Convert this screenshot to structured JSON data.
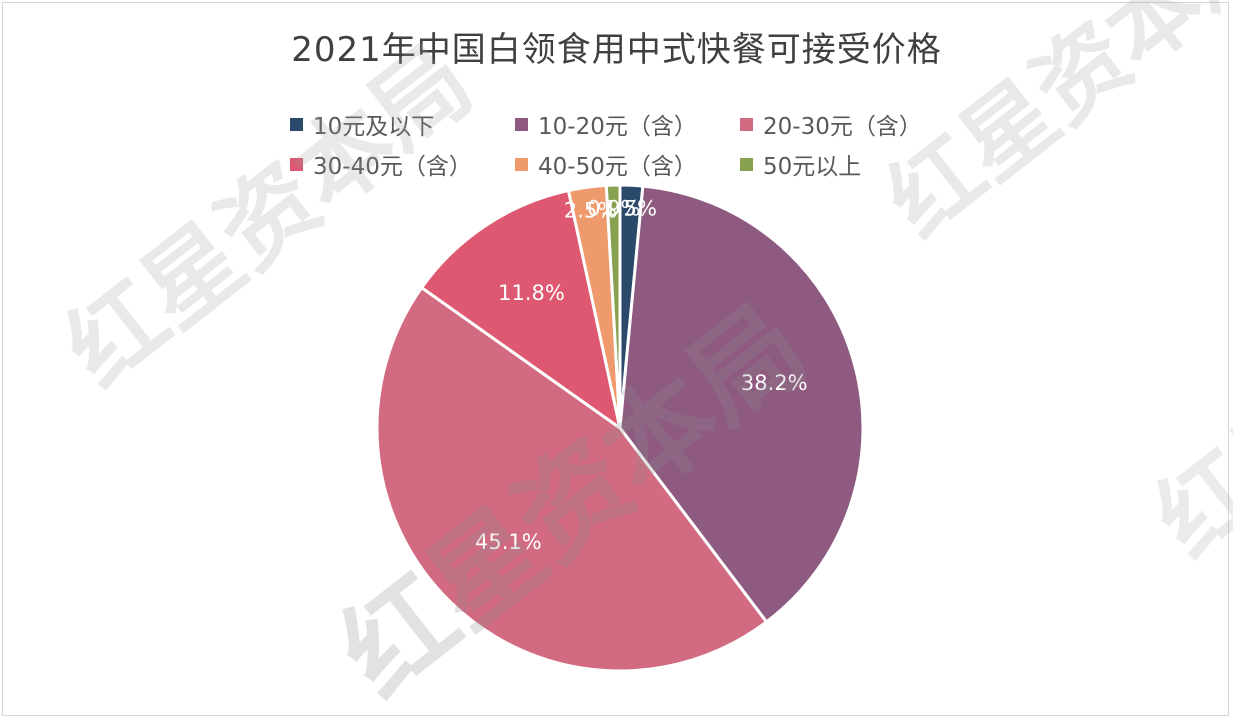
{
  "chart_data": {
    "type": "pie",
    "title": "2021年中国白领食用中式快餐可接受价格",
    "legend_position": "top",
    "slices": [
      {
        "label": "10元及以下",
        "value": 1.5,
        "display": "1.5%",
        "color": "#2b4a6b"
      },
      {
        "label": "10-20元（含）",
        "value": 38.2,
        "display": "38.2%",
        "color": "#8e5a80"
      },
      {
        "label": "20-30元（含）",
        "value": 45.1,
        "display": "45.1%",
        "color": "#d26b82"
      },
      {
        "label": "30-40元（含）",
        "value": 11.8,
        "display": "11.8%",
        "color": "#dd5870"
      },
      {
        "label": "40-50元（含）",
        "value": 2.5,
        "display": "2.5%",
        "color": "#ef9a6d"
      },
      {
        "label": "50元以上",
        "value": 0.9,
        "display": "0.9%",
        "color": "#86a14f"
      }
    ]
  },
  "watermark": {
    "text": "红星资本局"
  }
}
